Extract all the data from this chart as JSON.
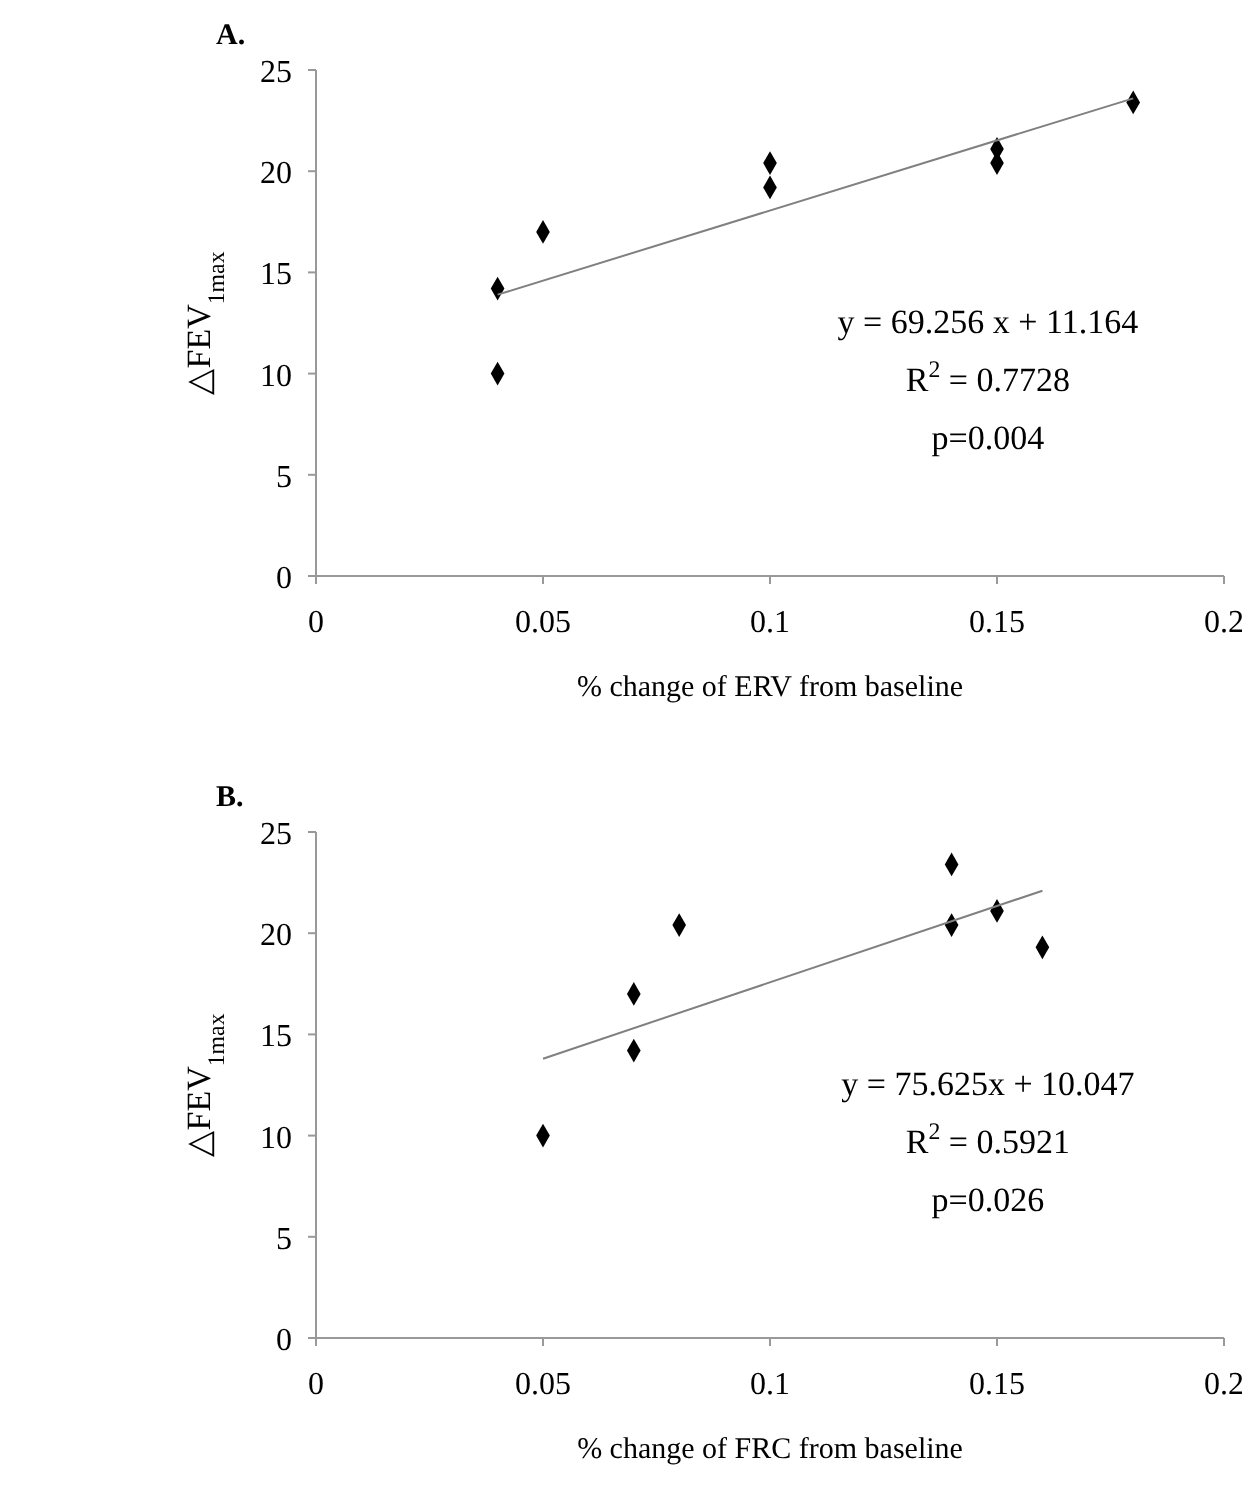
{
  "chart_data": [
    {
      "type": "scatter",
      "title": "A.",
      "xlabel": "% change of ERV from baseline",
      "ylabel": "△FEV$_{1max}$",
      "xlim": [
        0,
        0.2
      ],
      "xticks": [
        0,
        0.05,
        0.1,
        0.15,
        0.2
      ],
      "ylim": [
        0,
        25
      ],
      "yticks": [
        0,
        5,
        10,
        15,
        20,
        25
      ],
      "grid": false,
      "annotations": [
        "y = 69.256 x + 11.164",
        "R$^{2}$ = 0.7728",
        "p=0.004"
      ],
      "series": [
        {
          "marker": "diamond",
          "color": "#000000",
          "x": [
            0.04,
            0.04,
            0.05,
            0.1,
            0.1,
            0.15,
            0.15,
            0.18
          ],
          "values": [
            14.2,
            10,
            17,
            20.4,
            19.2,
            21.1,
            20.4,
            23.4
          ]
        },
        {
          "type": "line",
          "marker": "none",
          "color": "#808080",
          "x": [
            0.04,
            0.18
          ],
          "values": [
            13.9,
            23.6
          ]
        }
      ]
    },
    {
      "type": "scatter",
      "title": "B.",
      "xlabel": "% change of FRC from baseline",
      "ylabel": "△FEV$_{1max}$",
      "xlim": [
        0,
        0.2
      ],
      "xticks": [
        0,
        0.05,
        0.1,
        0.15,
        0.2
      ],
      "ylim": [
        0,
        25
      ],
      "yticks": [
        0,
        5,
        10,
        15,
        20,
        25
      ],
      "grid": false,
      "annotations": [
        "y = 75.625x + 10.047",
        "R$^{2}$ = 0.5921",
        "p=0.026"
      ],
      "series": [
        {
          "marker": "diamond",
          "color": "#000000",
          "x": [
            0.05,
            0.07,
            0.07,
            0.08,
            0.14,
            0.14,
            0.15,
            0.16
          ],
          "values": [
            10,
            17,
            14.2,
            20.4,
            23.4,
            20.4,
            21.1,
            19.3
          ]
        },
        {
          "type": "line",
          "marker": "none",
          "color": "#808080",
          "x": [
            0.05,
            0.16
          ],
          "values": [
            13.8,
            22.1
          ]
        }
      ]
    }
  ]
}
